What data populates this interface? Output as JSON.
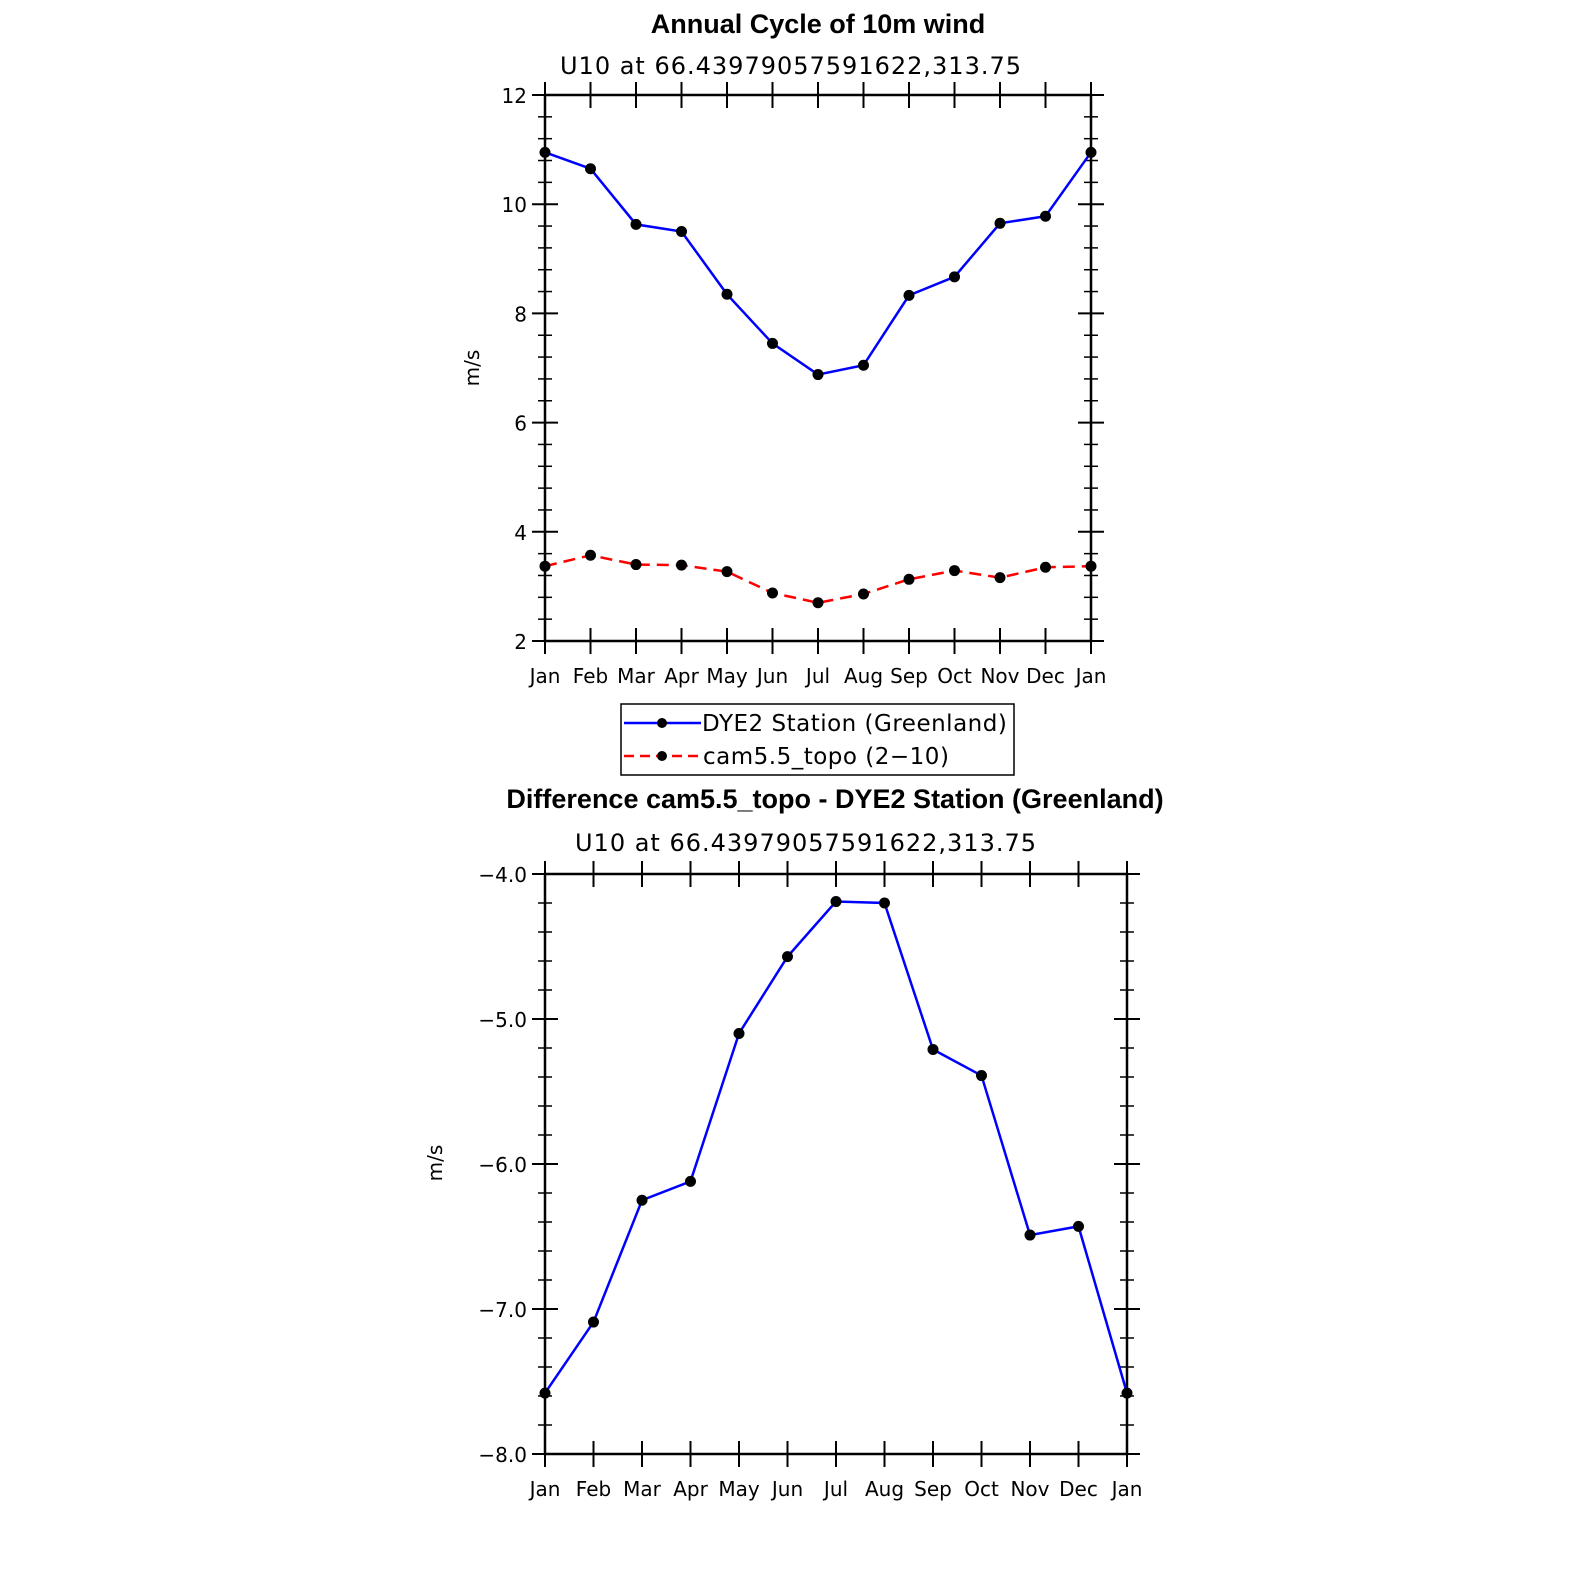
{
  "chart_data": [
    {
      "type": "line",
      "title": "Annual Cycle of 10m wind",
      "subtitle": "U10 at 66.43979057591622,313.75",
      "xlabel": "",
      "ylabel": "m/s",
      "categories": [
        "Jan",
        "Feb",
        "Mar",
        "Apr",
        "May",
        "Jun",
        "Jul",
        "Aug",
        "Sep",
        "Oct",
        "Nov",
        "Dec",
        "Jan"
      ],
      "ylim": [
        2,
        12
      ],
      "yticks": [
        "2",
        "4",
        "6",
        "8",
        "10",
        "12"
      ],
      "series": [
        {
          "name": "DYE2 Station (Greenland)",
          "color": "#0000ff",
          "dash": "solid",
          "values": [
            10.95,
            10.65,
            9.63,
            9.5,
            8.35,
            7.45,
            6.88,
            7.05,
            8.33,
            8.67,
            9.65,
            9.78,
            10.95
          ]
        },
        {
          "name": "cam5.5_topo (2−10)",
          "color": "#ff0000",
          "dash": "dashed",
          "values": [
            3.37,
            3.57,
            3.4,
            3.39,
            3.27,
            2.88,
            2.7,
            2.86,
            3.13,
            3.29,
            3.16,
            3.35,
            3.37
          ]
        }
      ],
      "legend": "bottom"
    },
    {
      "type": "line",
      "title": "Difference cam5.5_topo - DYE2 Station (Greenland)",
      "subtitle": "U10 at 66.43979057591622,313.75",
      "xlabel": "",
      "ylabel": "m/s",
      "categories": [
        "Jan",
        "Feb",
        "Mar",
        "Apr",
        "May",
        "Jun",
        "Jul",
        "Aug",
        "Sep",
        "Oct",
        "Nov",
        "Dec",
        "Jan"
      ],
      "ylim": [
        -8,
        -4
      ],
      "yticks": [
        "−8.0",
        "−7.0",
        "−6.0",
        "−5.0",
        "−4.0"
      ],
      "series": [
        {
          "name": "Difference",
          "color": "#0000ff",
          "dash": "solid",
          "values": [
            -7.58,
            -7.09,
            -6.25,
            -6.12,
            -5.1,
            -4.57,
            -4.19,
            -4.2,
            -5.21,
            -5.39,
            -6.49,
            -6.43,
            -7.58
          ]
        }
      ]
    }
  ]
}
